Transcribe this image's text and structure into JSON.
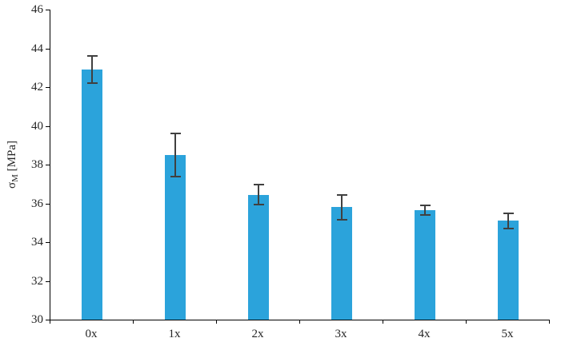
{
  "chart_data": {
    "type": "bar",
    "title": "",
    "xlabel": "",
    "ylabel": "σM [MPa]",
    "ylabel_parts": {
      "symbol": "σ",
      "subscript": "M",
      "unit": " [MPa]"
    },
    "categories": [
      "0x",
      "1x",
      "2x",
      "3x",
      "4x",
      "5x"
    ],
    "values": [
      42.9,
      38.5,
      36.45,
      35.8,
      35.65,
      35.1
    ],
    "errors": [
      0.7,
      1.1,
      0.5,
      0.65,
      0.25,
      0.4
    ],
    "ylim": [
      30,
      46
    ],
    "yticks": [
      30,
      32,
      34,
      36,
      38,
      40,
      42,
      44,
      46
    ],
    "grid": false,
    "legend": "none",
    "bar_color": "#2BA3DB",
    "error_bar_color": "#404040",
    "axis_color": "#000000"
  }
}
